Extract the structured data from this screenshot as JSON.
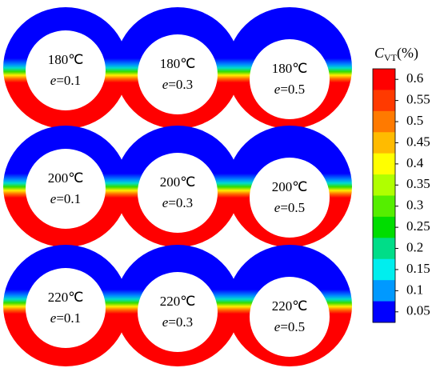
{
  "eccentricity_symbol": "e",
  "panels": [
    {
      "temperature": "180℃",
      "e_value": "=0.1"
    },
    {
      "temperature": "180℃",
      "e_value": "=0.3"
    },
    {
      "temperature": "180℃",
      "e_value": "=0.5"
    },
    {
      "temperature": "200℃",
      "e_value": "=0.1"
    },
    {
      "temperature": "200℃",
      "e_value": "=0.3"
    },
    {
      "temperature": "200℃",
      "e_value": "=0.5"
    },
    {
      "temperature": "220℃",
      "e_value": "=0.1"
    },
    {
      "temperature": "220℃",
      "e_value": "=0.3"
    },
    {
      "temperature": "220℃",
      "e_value": "=0.5"
    }
  ],
  "colorbar": {
    "symbol": "C",
    "subscript": "VT",
    "unit": "(%)",
    "ticks": [
      0.6,
      0.55,
      0.5,
      0.45,
      0.4,
      0.35,
      0.3,
      0.25,
      0.2,
      0.15,
      0.1,
      0.05
    ],
    "colors": [
      "#ff0000",
      "#ff3a00",
      "#ff7a00",
      "#ffbb00",
      "#ffff00",
      "#b0ff00",
      "#55ee00",
      "#00dd00",
      "#00dd88",
      "#00eeee",
      "#0099ff",
      "#0000ff"
    ]
  }
}
